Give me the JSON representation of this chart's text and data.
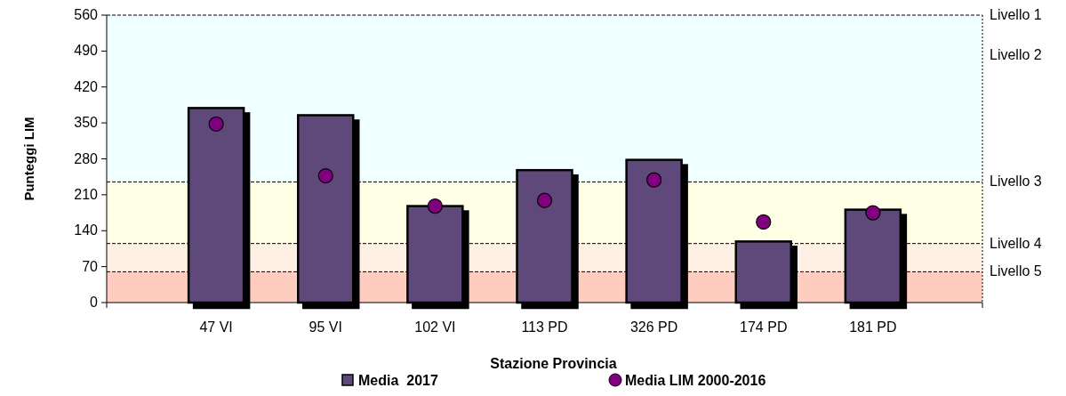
{
  "chart_data": {
    "type": "bar",
    "xlabel": "Stazione Provincia",
    "ylabel": "Punteggi LIM",
    "categories": [
      null,
      "47 VI",
      "95 VI",
      "102 VI",
      "113 PD",
      "326 PD",
      "174 PD",
      "181 PD",
      null
    ],
    "series": [
      {
        "name": "Media  2017",
        "color": "#5e4a7a",
        "values": [
          null,
          379,
          365,
          188,
          258,
          278,
          119,
          181,
          null
        ]
      },
      {
        "name": "Media LIM 2000-2016",
        "type": "scatter",
        "color": "#800080",
        "values": [
          null,
          348,
          247,
          188,
          199,
          239,
          157,
          175,
          null
        ]
      }
    ],
    "ylim": [
      0,
      560
    ],
    "yticks": [
      0,
      70,
      140,
      210,
      280,
      350,
      420,
      490,
      560
    ],
    "bands": [
      {
        "axis": "y",
        "from": 0,
        "to": 60,
        "color": "#ffccc0"
      },
      {
        "axis": "y",
        "from": 60,
        "to": 115,
        "color": "#fff0e6"
      },
      {
        "axis": "y",
        "from": 115,
        "to": 235,
        "color": "#ffffe6"
      },
      {
        "axis": "y",
        "from": 235,
        "to": 560,
        "color": "#f0ffff"
      }
    ],
    "ref_lines": [
      {
        "axis": "y",
        "value": 560,
        "label": "Livello 1",
        "line_style": "dashed"
      },
      {
        "axis": "y",
        "value": 235,
        "label": "Livello 3",
        "line_style": "dashed"
      },
      {
        "axis": "y",
        "value": 115,
        "label": "Livello 4",
        "line_style": "dashed"
      },
      {
        "axis": "y",
        "value": 60,
        "label": "Livello 5",
        "line_style": "dashed"
      }
    ],
    "annotations": [
      "Livello 2"
    ],
    "marker": "circle",
    "legend": "bottom",
    "grid": false
  }
}
